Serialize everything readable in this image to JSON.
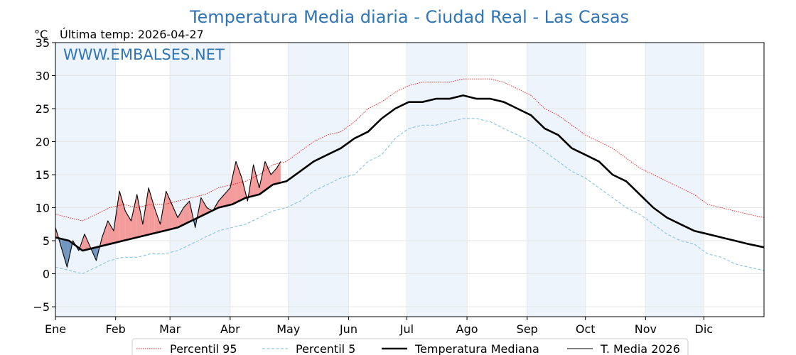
{
  "chart_data": {
    "type": "line",
    "title": "Temperatura Media diaria - Ciudad Real - Las Casas",
    "unit_label": "°C",
    "last_temp_label": "Última temp: 2026-04-27",
    "watermark": "WWW.EMBALSES.NET",
    "ylim": [
      -6.5,
      35
    ],
    "yticks": [
      -5,
      0,
      5,
      10,
      15,
      20,
      25,
      30,
      35
    ],
    "ytick_labels": [
      "−5",
      "0",
      "5",
      "10",
      "15",
      "20",
      "25",
      "30",
      "35"
    ],
    "xlim_days": [
      1,
      366
    ],
    "months": [
      {
        "label": "Ene",
        "start_day": 1
      },
      {
        "label": "Feb",
        "start_day": 32
      },
      {
        "label": "Mar",
        "start_day": 60
      },
      {
        "label": "Abr",
        "start_day": 91
      },
      {
        "label": "May",
        "start_day": 121
      },
      {
        "label": "Jun",
        "start_day": 152
      },
      {
        "label": "Jul",
        "start_day": 182
      },
      {
        "label": "Ago",
        "start_day": 213
      },
      {
        "label": "Sep",
        "start_day": 244
      },
      {
        "label": "Oct",
        "start_day": 274
      },
      {
        "label": "Nov",
        "start_day": 305
      },
      {
        "label": "Dic",
        "start_day": 335
      }
    ],
    "series": [
      {
        "name": "Percentil 95",
        "color": "#e31a1c",
        "style": "dotted",
        "day": [
          1,
          8,
          15,
          22,
          29,
          36,
          43,
          50,
          57,
          64,
          71,
          78,
          85,
          92,
          99,
          106,
          113,
          120,
          127,
          134,
          141,
          148,
          155,
          162,
          169,
          176,
          183,
          190,
          197,
          204,
          211,
          218,
          225,
          232,
          239,
          246,
          253,
          260,
          267,
          274,
          281,
          288,
          295,
          302,
          309,
          316,
          323,
          330,
          337,
          344,
          351,
          358,
          366
        ],
        "values": [
          9.0,
          8.5,
          8.0,
          9.0,
          10.0,
          10.5,
          10.0,
          10.5,
          10.5,
          11.0,
          11.5,
          12.0,
          13.0,
          13.5,
          14.0,
          15.0,
          16.5,
          17.0,
          18.5,
          20.0,
          21.0,
          21.5,
          23.0,
          25.0,
          26.0,
          27.5,
          28.5,
          29.0,
          29.0,
          29.0,
          29.5,
          29.5,
          29.5,
          29.0,
          28.0,
          27.0,
          25.0,
          24.0,
          22.5,
          21.0,
          20.0,
          19.0,
          17.5,
          16.0,
          15.0,
          14.0,
          13.0,
          12.0,
          10.5,
          10.0,
          9.5,
          9.0,
          8.5
        ]
      },
      {
        "name": "Percentil 5",
        "color": "#8fc8e0",
        "style": "dashed",
        "day": [
          1,
          8,
          15,
          22,
          29,
          36,
          43,
          50,
          57,
          64,
          71,
          78,
          85,
          92,
          99,
          106,
          113,
          120,
          127,
          134,
          141,
          148,
          155,
          162,
          169,
          176,
          183,
          190,
          197,
          204,
          211,
          218,
          225,
          232,
          239,
          246,
          253,
          260,
          267,
          274,
          281,
          288,
          295,
          302,
          309,
          316,
          323,
          330,
          337,
          344,
          351,
          358,
          366
        ],
        "values": [
          1.0,
          0.5,
          0.0,
          1.0,
          2.0,
          2.5,
          2.5,
          3.0,
          3.0,
          3.5,
          4.5,
          5.5,
          6.5,
          7.0,
          7.5,
          8.5,
          9.5,
          10.0,
          11.0,
          12.5,
          13.5,
          14.5,
          15.0,
          17.0,
          18.0,
          20.5,
          22.0,
          22.5,
          22.5,
          23.0,
          23.5,
          23.5,
          23.0,
          22.0,
          21.0,
          20.0,
          18.5,
          17.0,
          15.5,
          14.5,
          13.0,
          11.5,
          10.0,
          9.0,
          7.5,
          6.0,
          5.0,
          4.5,
          3.0,
          2.5,
          1.5,
          1.0,
          0.5
        ]
      },
      {
        "name": "Temperatura Mediana",
        "color": "#000000",
        "style": "solid-thick",
        "day": [
          1,
          8,
          15,
          22,
          29,
          36,
          43,
          50,
          57,
          64,
          71,
          78,
          85,
          92,
          99,
          106,
          113,
          120,
          127,
          134,
          141,
          148,
          155,
          162,
          169,
          176,
          183,
          190,
          197,
          204,
          211,
          218,
          225,
          232,
          239,
          246,
          253,
          260,
          267,
          274,
          281,
          288,
          295,
          302,
          309,
          316,
          323,
          330,
          337,
          344,
          351,
          358,
          366
        ],
        "values": [
          5.5,
          5.0,
          3.5,
          4.0,
          4.5,
          5.0,
          5.5,
          6.0,
          6.5,
          7.0,
          8.0,
          9.0,
          10.0,
          10.5,
          11.5,
          12.0,
          13.5,
          14.0,
          15.5,
          17.0,
          18.0,
          19.0,
          20.5,
          21.5,
          23.5,
          25.0,
          26.0,
          26.0,
          26.5,
          26.5,
          27.0,
          26.5,
          26.5,
          26.0,
          25.0,
          24.0,
          22.0,
          21.0,
          19.0,
          18.0,
          17.0,
          15.0,
          14.0,
          12.0,
          10.0,
          8.5,
          7.5,
          6.5,
          6.0,
          5.5,
          5.0,
          4.5,
          4.0
        ]
      },
      {
        "name": "T. Media 2026",
        "color": "#000000",
        "style": "solid-thin",
        "day": [
          1,
          4,
          7,
          10,
          13,
          16,
          19,
          22,
          25,
          28,
          31,
          34,
          37,
          40,
          43,
          46,
          49,
          52,
          55,
          58,
          61,
          64,
          67,
          70,
          73,
          76,
          79,
          82,
          85,
          88,
          91,
          94,
          97,
          100,
          103,
          106,
          109,
          112,
          115,
          117
        ],
        "values": [
          7.0,
          4.0,
          1.0,
          5.0,
          3.5,
          6.0,
          4.0,
          2.0,
          5.5,
          8.0,
          6.5,
          12.5,
          9.5,
          8.0,
          12.0,
          7.5,
          13.0,
          10.0,
          7.5,
          12.5,
          10.5,
          8.5,
          10.0,
          11.0,
          7.0,
          11.5,
          10.0,
          9.5,
          11.0,
          12.0,
          13.0,
          17.0,
          14.5,
          11.0,
          16.5,
          13.0,
          17.0,
          15.0,
          16.0,
          17.0
        ]
      }
    ],
    "legend": [
      {
        "label": "Percentil 95",
        "style": "dotted",
        "color": "#e31a1c"
      },
      {
        "label": "Percentil 5",
        "style": "dashed",
        "color": "#8fc8e0"
      },
      {
        "label": "Temperatura Mediana",
        "style": "solid-thick",
        "color": "#000000"
      },
      {
        "label": "T. Media 2026",
        "style": "solid-thin",
        "color": "#000000"
      }
    ],
    "fill_colors": {
      "above_median": "#f28b8b",
      "below_median": "#5a86b5",
      "month_band": "#eef4fb"
    }
  }
}
